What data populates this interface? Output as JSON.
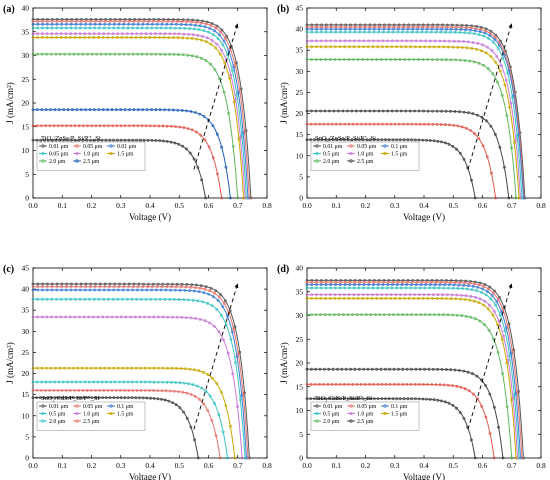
{
  "chart_data": [
    {
      "type": "line",
      "panel_label": "(a)",
      "device_label": "TiO₂/ZnSe/P_Si/P⁺_Si",
      "xlabel": "Voltage (V)",
      "ylabel": "J (mA/cm²)",
      "xlim": [
        0,
        0.8
      ],
      "ylim": [
        0,
        40
      ],
      "xticks": [
        "0.0",
        "0.1",
        "0.2",
        "0.3",
        "0.4",
        "0.5",
        "0.6",
        "0.7",
        "0.8"
      ],
      "yticks": [
        "0",
        "5",
        "10",
        "15",
        "20",
        "25",
        "30",
        "35",
        "40"
      ],
      "legend_position": "lower-left",
      "series": [
        {
          "name": "0.01 μm",
          "color": "#555555",
          "jsc": 37.6,
          "voc": 0.745
        },
        {
          "name": "0.05 μm",
          "color": "#e8736c",
          "jsc": 37.2,
          "voc": 0.74
        },
        {
          "name": "0.01 μm",
          "color": "#3a7bd5",
          "jsc": 36.6,
          "voc": 0.735
        },
        {
          "name": "0.05 μm",
          "color": "#3cc3c3",
          "jsc": 35.8,
          "voc": 0.73
        },
        {
          "name": "1.0 μm",
          "color": "#c77ad6",
          "jsc": 34.6,
          "voc": 0.725
        },
        {
          "name": "1.5 μm",
          "color": "#c9a800",
          "jsc": 33.8,
          "voc": 0.72
        },
        {
          "name": "2.0 μm",
          "color": "#5fb85f",
          "jsc": 30.3,
          "voc": 0.7
        },
        {
          "name": "2.5 μm",
          "color": "#1f5fb8",
          "jsc": 18.6,
          "voc": 0.675
        },
        {
          "name": "",
          "color": "#e05a4f",
          "jsc": 15.2,
          "voc": 0.645
        },
        {
          "name": "",
          "color": "#444444",
          "jsc": 12.2,
          "voc": 0.59
        }
      ]
    },
    {
      "type": "line",
      "panel_label": "(b)",
      "device_label": "SnO₂/ZnSe/P_Si/P⁺_Si",
      "xlabel": "Voltage (V)",
      "ylabel": "J (mA/cm²)",
      "xlim": [
        0,
        0.8
      ],
      "ylim": [
        0,
        45
      ],
      "xticks": [
        "0.0",
        "0.1",
        "0.2",
        "0.3",
        "0.4",
        "0.5",
        "0.6",
        "0.7",
        "0.8"
      ],
      "yticks": [
        "0",
        "5",
        "10",
        "15",
        "20",
        "25",
        "30",
        "35",
        "40",
        "45"
      ],
      "legend_position": "lower-left",
      "series": [
        {
          "name": "0.01 μm",
          "color": "#555555",
          "jsc": 41.0,
          "voc": 0.745
        },
        {
          "name": "0.05 μm",
          "color": "#e8736c",
          "jsc": 40.5,
          "voc": 0.742
        },
        {
          "name": "0.1 μm",
          "color": "#3a7bd5",
          "jsc": 40.0,
          "voc": 0.74
        },
        {
          "name": "0.5 μm",
          "color": "#3cc3c3",
          "jsc": 39.3,
          "voc": 0.735
        },
        {
          "name": "1.0 μm",
          "color": "#c77ad6",
          "jsc": 37.2,
          "voc": 0.73
        },
        {
          "name": "1.5 μm",
          "color": "#c9a800",
          "jsc": 35.8,
          "voc": 0.725
        },
        {
          "name": "2.0 μm",
          "color": "#5fb85f",
          "jsc": 32.8,
          "voc": 0.715
        },
        {
          "name": "2.5 μm",
          "color": "#444444",
          "jsc": 20.6,
          "voc": 0.69
        },
        {
          "name": "",
          "color": "#e05a4f",
          "jsc": 17.5,
          "voc": 0.645
        },
        {
          "name": "",
          "color": "#444444",
          "jsc": 13.8,
          "voc": 0.575
        }
      ]
    },
    {
      "type": "line",
      "panel_label": "(c)",
      "device_label": "SnO₂/CdS/P_Si/P⁺_Si",
      "xlabel": "Voltage (V)",
      "ylabel": "J (mA/cm²)",
      "xlim": [
        0,
        0.8
      ],
      "ylim": [
        0,
        45
      ],
      "xticks": [
        "0.0",
        "0.1",
        "0.2",
        "0.3",
        "0.4",
        "0.5",
        "0.6",
        "0.7",
        "0.8"
      ],
      "yticks": [
        "0",
        "5",
        "10",
        "15",
        "20",
        "25",
        "30",
        "35",
        "40",
        "45"
      ],
      "legend_position": "lower-left",
      "series": [
        {
          "name": "0.01 μm",
          "color": "#555555",
          "jsc": 41.2,
          "voc": 0.74
        },
        {
          "name": "0.05 μm",
          "color": "#e8736c",
          "jsc": 40.6,
          "voc": 0.735
        },
        {
          "name": "0.1 μm",
          "color": "#3a7bd5",
          "jsc": 39.8,
          "voc": 0.73
        },
        {
          "name": "0.5 μm",
          "color": "#3cc3c3",
          "jsc": 37.6,
          "voc": 0.725
        },
        {
          "name": "1.0 μm",
          "color": "#c77ad6",
          "jsc": 33.4,
          "voc": 0.715
        },
        {
          "name": "1.5 μm",
          "color": "#c9a800",
          "jsc": 21.3,
          "voc": 0.69
        },
        {
          "name": "2.0 μm",
          "color": "#3cc3c3",
          "jsc": 18.0,
          "voc": 0.665
        },
        {
          "name": "2.5 μm",
          "color": "#e8736c",
          "jsc": 16.0,
          "voc": 0.64
        },
        {
          "name": "",
          "color": "#444444",
          "jsc": 14.3,
          "voc": 0.565
        }
      ]
    },
    {
      "type": "line",
      "panel_label": "(d)",
      "device_label": "TiO₂/CdS/P_Si/P⁺_Si",
      "xlabel": "Voltage (V)",
      "ylabel": "J (mA/cm²)",
      "xlim": [
        0,
        0.8
      ],
      "ylim": [
        0,
        40
      ],
      "xticks": [
        "0.0",
        "0.1",
        "0.2",
        "0.3",
        "0.4",
        "0.5",
        "0.6",
        "0.7",
        "0.8"
      ],
      "yticks": [
        "0",
        "5",
        "10",
        "15",
        "20",
        "25",
        "30",
        "35",
        "40"
      ],
      "legend_position": "lower-left",
      "series": [
        {
          "name": "0.01 μm",
          "color": "#555555",
          "jsc": 37.4,
          "voc": 0.74
        },
        {
          "name": "0.05 μm",
          "color": "#e8736c",
          "jsc": 37.0,
          "voc": 0.735
        },
        {
          "name": "0.1 μm",
          "color": "#3a7bd5",
          "jsc": 36.5,
          "voc": 0.73
        },
        {
          "name": "0.5 μm",
          "color": "#3cc3c3",
          "jsc": 35.8,
          "voc": 0.725
        },
        {
          "name": "1.0 μm",
          "color": "#c77ad6",
          "jsc": 34.4,
          "voc": 0.72
        },
        {
          "name": "1.5 μm",
          "color": "#c9a800",
          "jsc": 33.6,
          "voc": 0.715
        },
        {
          "name": "2.0 μm",
          "color": "#5fb85f",
          "jsc": 30.2,
          "voc": 0.7
        },
        {
          "name": "2.5 μm",
          "color": "#444444",
          "jsc": 18.7,
          "voc": 0.67
        },
        {
          "name": "",
          "color": "#e05a4f",
          "jsc": 15.5,
          "voc": 0.64
        },
        {
          "name": "",
          "color": "#444444",
          "jsc": 12.5,
          "voc": 0.575
        }
      ]
    }
  ]
}
